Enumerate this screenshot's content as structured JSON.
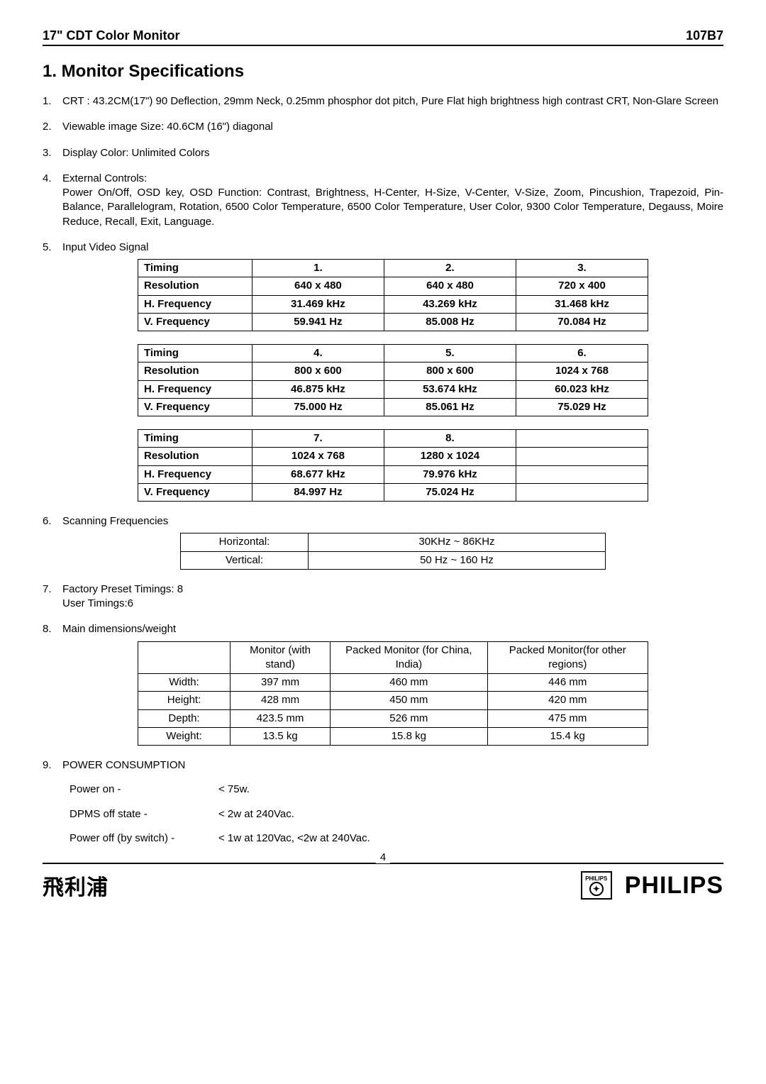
{
  "header": {
    "left": "17\" CDT Color Monitor",
    "right": "107B7"
  },
  "title": "1. Monitor Specifications",
  "items": [
    {
      "n": "1.",
      "text": "CRT : 43.2CM(17\") 90 Deflection, 29mm Neck, 0.25mm phosphor dot pitch, Pure Flat high brightness high contrast CRT, Non-Glare Screen"
    },
    {
      "n": "2.",
      "text": "Viewable image Size: 40.6CM (16\") diagonal"
    },
    {
      "n": "3.",
      "text": "Display Color: Unlimited Colors"
    },
    {
      "n": "4.",
      "text": "External Controls:\nPower On/Off, OSD key, OSD Function: Contrast, Brightness, H-Center, H-Size, V-Center, V-Size, Zoom, Pincushion, Trapezoid, Pin-Balance, Parallelogram, Rotation, 6500 Color Temperature, 6500 Color Temperature, User Color, 9300 Color Temperature, Degauss, Moire Reduce, Recall, Exit, Language."
    },
    {
      "n": "5.",
      "text": "Input Video Signal"
    }
  ],
  "timingRowLabels": [
    "Timing",
    "Resolution",
    "H. Frequency",
    "V. Frequency"
  ],
  "timingTables": [
    {
      "cols": [
        "1.",
        "2.",
        "3."
      ],
      "rows": [
        [
          "640 x 480",
          "640 x 480",
          "720 x 400"
        ],
        [
          "31.469 kHz",
          "43.269 kHz",
          "31.468 kHz"
        ],
        [
          "59.941 Hz",
          "85.008 Hz",
          "70.084 Hz"
        ]
      ]
    },
    {
      "cols": [
        "4.",
        "5.",
        "6."
      ],
      "rows": [
        [
          "800 x 600",
          "800 x 600",
          "1024 x 768"
        ],
        [
          "46.875 kHz",
          "53.674 kHz",
          "60.023 kHz"
        ],
        [
          "75.000 Hz",
          "85.061 Hz",
          "75.029 Hz"
        ]
      ]
    },
    {
      "cols": [
        "7.",
        "8.",
        ""
      ],
      "rows": [
        [
          "1024 x 768",
          "1280 x 1024",
          ""
        ],
        [
          "68.677 kHz",
          "79.976 kHz",
          ""
        ],
        [
          "84.997 Hz",
          "75.024 Hz",
          ""
        ]
      ]
    }
  ],
  "item6": {
    "n": "6.",
    "text": "Scanning Frequencies"
  },
  "freq": [
    {
      "k": "Horizontal:",
      "v": "30KHz ~ 86KHz"
    },
    {
      "k": "Vertical:",
      "v": "50 Hz ~ 160 Hz"
    }
  ],
  "item7": {
    "n": "7.",
    "line1": "Factory Preset Timings: 8",
    "line2": "User Timings:6"
  },
  "item8": {
    "n": "8.",
    "text": "Main dimensions/weight"
  },
  "dims": {
    "headers": [
      "",
      "Monitor (with stand)",
      "Packed Monitor (for China, India)",
      "Packed Monitor(for other regions)"
    ],
    "rows": [
      [
        "Width:",
        "397 mm",
        "460 mm",
        "446 mm"
      ],
      [
        "Height:",
        "428 mm",
        "450 mm",
        "420 mm"
      ],
      [
        "Depth:",
        "423.5 mm",
        "526 mm",
        "475 mm"
      ],
      [
        "Weight:",
        "13.5 kg",
        "15.8 kg",
        "15.4 kg"
      ]
    ]
  },
  "item9": {
    "n": "9.",
    "text": "POWER CONSUMPTION"
  },
  "power": [
    {
      "k": "Power on -",
      "v": "< 75w."
    },
    {
      "k": "DPMS off state -",
      "v": "< 2w at 240Vac."
    },
    {
      "k": "Power off (by switch) -",
      "v": "< 1w at 120Vac, <2w at 240Vac."
    }
  ],
  "footer": {
    "page": "4",
    "leftLogo": "飛利浦",
    "shieldText": "PHILIPS",
    "rightLogo": "PHILIPS"
  }
}
